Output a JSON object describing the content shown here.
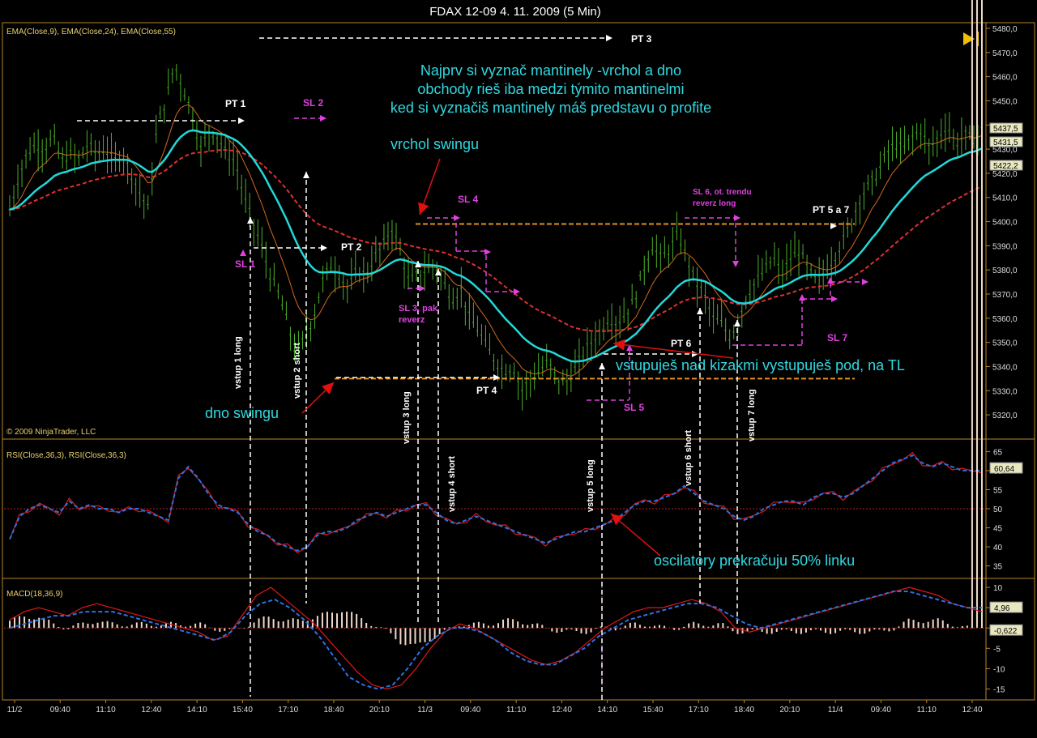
{
  "window_title": "FDAX 12-09  4. 11. 2009 (5 Min)",
  "copyright": "© 2009 NinjaTrader, LLC",
  "colors": {
    "background": "#000000",
    "bars": "#4caf2a",
    "ema9": "#d2691e",
    "ema24": "#22d8d8",
    "ema55": "#e03030",
    "annotation_text": "#30d8e0",
    "magenta": "#e040e0",
    "arrow_red": "#e01010",
    "orange_level": "#e89020",
    "rsi_line": "#e01818",
    "rsi_signal": "#3070e0",
    "panel_border": "#b8862a",
    "axis_text": "#dddddd"
  },
  "panels": {
    "price": {
      "label": "EMA(Close,9), EMA(Close,24), EMA(Close,55)"
    },
    "rsi": {
      "label": "RSI(Close,36,3), RSI(Close,36,3)"
    },
    "macd": {
      "label": "MACD(18,36,9)"
    }
  },
  "notes": {
    "main": [
      "Najprv si vyznač mantinely -vrchol a dno",
      "obchody rieš iba medzi týmito mantinelmi",
      "ked si vyznačiš mantinely máš predstavu o profite"
    ],
    "swing_top": "vrchol swingu",
    "swing_bottom": "dno swingu",
    "entries": "vstupuješ nad kizakmi vystupuješ pod, na TL",
    "oscillators": "oscilatory prekračuju 50% linku"
  },
  "trade_labels": {
    "pt1": "PT 1",
    "pt2": "PT 2",
    "pt3": "PT 3",
    "pt4": "PT 4",
    "pt57": "PT 5 a 7",
    "pt6": "PT 6",
    "sl1": "SL 1",
    "sl2": "SL 2",
    "sl3": "SL 3, pak",
    "sl3b": "reverz",
    "sl4": "SL 4",
    "sl5": "SL 5",
    "sl6": "SL 6, ot. trendu",
    "sl6b": "reverz long",
    "sl7": "SL 7",
    "e1": "vstup 1 long",
    "e2": "vstup 2 short",
    "e3": "vstup 3 long",
    "e4": "vstup 4 short",
    "e5": "vstup 5 long",
    "e6": "vstup 6 short",
    "e7": "vstup 7 long"
  },
  "chart_data": [
    {
      "type": "candlestick",
      "title": "FDAX 12-09  4. 11. 2009 (5 Min)",
      "series": [
        {
          "name": "EMA(Close,9)"
        },
        {
          "name": "EMA(Close,24)"
        },
        {
          "name": "EMA(Close,55)"
        }
      ],
      "x_tick_labels": [
        "11/2",
        "09:40",
        "11:10",
        "12:40",
        "14:10",
        "15:40",
        "17:10",
        "18:40",
        "20:10",
        "11/3",
        "09:40",
        "11:10",
        "12:40",
        "14:10",
        "15:40",
        "17:10",
        "18:40",
        "20:10",
        "11/4",
        "09:40",
        "11:10",
        "12:40"
      ],
      "y_ticks": [
        5320,
        5330,
        5340,
        5350,
        5360,
        5370,
        5380,
        5390,
        5400,
        5410,
        5420,
        5430,
        5440,
        5450,
        5460,
        5470,
        5480
      ],
      "ylim": [
        5314,
        5481
      ],
      "last_value_labels": [
        "5437,5",
        "5431,5",
        "5422,2"
      ],
      "close_path": [
        5405,
        5418,
        5428,
        5432,
        5430,
        5435,
        5425,
        5428,
        5426,
        5432,
        5428,
        5430,
        5425,
        5428,
        5420,
        5412,
        5405,
        5440,
        5450,
        5465,
        5455,
        5445,
        5430,
        5438,
        5435,
        5428,
        5425,
        5410,
        5400,
        5390,
        5378,
        5370,
        5358,
        5345,
        5352,
        5360,
        5375,
        5382,
        5378,
        5372,
        5380,
        5378,
        5385,
        5390,
        5398,
        5388,
        5375,
        5378,
        5380,
        5382,
        5375,
        5368,
        5372,
        5360,
        5355,
        5348,
        5342,
        5338,
        5340,
        5330,
        5335,
        5338,
        5342,
        5335,
        5333,
        5338,
        5345,
        5350,
        5355,
        5360,
        5358,
        5362,
        5368,
        5380,
        5390,
        5385,
        5388,
        5395,
        5385,
        5375,
        5370,
        5360,
        5358,
        5352,
        5360,
        5370,
        5375,
        5380,
        5385,
        5378,
        5385,
        5388,
        5380,
        5375,
        5380,
        5385,
        5392,
        5400,
        5410,
        5415,
        5420,
        5428,
        5432,
        5430,
        5435,
        5438,
        5430,
        5435,
        5440,
        5432,
        5436,
        5434,
        5438
      ],
      "levels": {
        "swing_top": 5399,
        "swing_bottom": 5335
      },
      "annotations": [
        "PT 1",
        "PT 2",
        "PT 3",
        "PT 4",
        "PT 5 a 7",
        "PT 6",
        "SL 1",
        "SL 2",
        "SL 3, pak reverz",
        "SL 4",
        "SL 5",
        "SL 6, ot. trendu reverz long",
        "SL 7"
      ]
    },
    {
      "type": "line",
      "title": "RSI(Close,36,3), RSI(Close,36,3)",
      "y_ticks": [
        35,
        40,
        45,
        50,
        55,
        60,
        65
      ],
      "ylim": [
        33,
        67
      ],
      "last_value": "60,64",
      "reference_line": 50,
      "series": [
        {
          "name": "RSI(Close,36,3)",
          "values": [
            42,
            48,
            50,
            51,
            50,
            49,
            52,
            50,
            51,
            50,
            50,
            49,
            50,
            50,
            49,
            48,
            47,
            58,
            61,
            58,
            54,
            51,
            50,
            49,
            46,
            44,
            43,
            41,
            40,
            39,
            40,
            43,
            44,
            44,
            45,
            47,
            48,
            49,
            48,
            49,
            50,
            51,
            51,
            49,
            47,
            46,
            47,
            48,
            47,
            46,
            45,
            44,
            43,
            42,
            41,
            42,
            43,
            44,
            44,
            45,
            46,
            47,
            49,
            51,
            52,
            52,
            53,
            54,
            56,
            54,
            52,
            51,
            50,
            48,
            47,
            48,
            50,
            51,
            52,
            52,
            51,
            53,
            54,
            54,
            53,
            54,
            56,
            58,
            60,
            62,
            63,
            64,
            62,
            61,
            62,
            61,
            60,
            60,
            60
          ]
        }
      ]
    },
    {
      "type": "line",
      "title": "MACD(18,36,9)",
      "y_ticks": [
        -15,
        -10,
        -5,
        0,
        5,
        10
      ],
      "ylim": [
        -16.5,
        11
      ],
      "last_value_labels": [
        "4,96",
        "-0,622"
      ],
      "series": [
        {
          "name": "MACD(18,36,9)",
          "values": [
            2,
            4,
            5,
            4,
            3,
            5,
            6,
            5,
            4,
            3,
            2,
            1,
            0,
            -1,
            -3,
            -2,
            3,
            8,
            10,
            7,
            4,
            1,
            -3,
            -7,
            -11,
            -14,
            -15,
            -14,
            -10,
            -5,
            -1,
            1,
            0,
            -2,
            -4,
            -6,
            -8,
            -9,
            -8,
            -6,
            -3,
            0,
            2,
            4,
            5,
            5,
            6,
            7,
            6,
            4,
            0,
            -1,
            0,
            1,
            2,
            3,
            4,
            5,
            6,
            7,
            8,
            9,
            10,
            9,
            8,
            6,
            5,
            4
          ]
        },
        {
          "name": "MACD(18,36,9)",
          "values": [
            0,
            1,
            2,
            3,
            3,
            4,
            4,
            4,
            3,
            2,
            1,
            0,
            -1,
            -2,
            -3,
            -1,
            3,
            6,
            7,
            5,
            2,
            -2,
            -7,
            -12,
            -14,
            -15,
            -14,
            -10,
            -5,
            -2,
            0,
            0,
            -1,
            -3,
            -6,
            -8,
            -9,
            -9,
            -7,
            -5,
            -2,
            0,
            2,
            3,
            4,
            5,
            6,
            6,
            5,
            3,
            1,
            0,
            1,
            2,
            3,
            4,
            5,
            6,
            7,
            8,
            9,
            9,
            8,
            7,
            6,
            5,
            5
          ]
        }
      ]
    }
  ]
}
